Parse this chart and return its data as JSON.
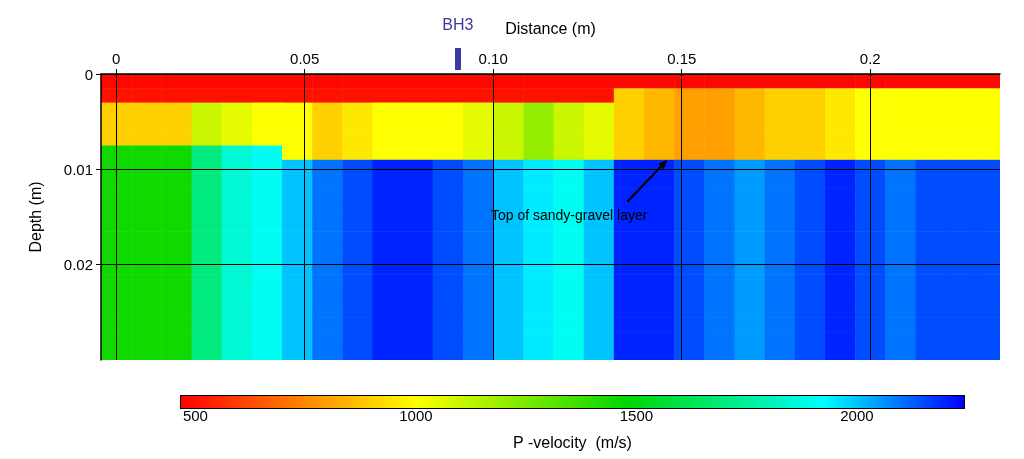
{
  "chart_data": {
    "type": "heatmap",
    "xlabel": "Distance (m)",
    "ylabel": "Depth (m)",
    "clabel": "P -velocity  (m/s)",
    "x": [
      0,
      0.008,
      0.016,
      0.024,
      0.032,
      0.04,
      0.048,
      0.056,
      0.064,
      0.072,
      0.08,
      0.088,
      0.096,
      0.104,
      0.112,
      0.12,
      0.128,
      0.136,
      0.144,
      0.152,
      0.16,
      0.168,
      0.176,
      0.184,
      0.192,
      0.2,
      0.208,
      0.216,
      0.224,
      0.232
    ],
    "y": [
      0.00075,
      0.00225,
      0.00375,
      0.00525,
      0.00675,
      0.00825,
      0.00975,
      0.01125,
      0.01275,
      0.01425,
      0.01575,
      0.01725,
      0.01875,
      0.02025,
      0.02175,
      0.02325,
      0.02475,
      0.02625,
      0.02775,
      0.02925
    ],
    "xlim": [
      -0.004,
      0.2344
    ],
    "ylim": [
      0.03,
      0
    ],
    "xticks": [
      0,
      0.05,
      {
        "value": 0.1,
        "label": "0.10"
      },
      0.15,
      0.2
    ],
    "yticks": [
      0,
      0.01,
      0.02
    ],
    "clim": [
      465,
      2245
    ],
    "cticks": [
      500,
      1000,
      1500,
      2000
    ],
    "grid": true,
    "annotations": [
      "BH3",
      "Top of sandy-gravel layer"
    ],
    "cells": [
      [
        480,
        480,
        480,
        480,
        480,
        480,
        480,
        480,
        480,
        480,
        480,
        480,
        480,
        480,
        480,
        480,
        480,
        480,
        480,
        480,
        480,
        480,
        480,
        480,
        480,
        480,
        480,
        480,
        480,
        480
      ],
      [
        500,
        500,
        500,
        500,
        500,
        500,
        500,
        500,
        500,
        500,
        500,
        500,
        500,
        500,
        500,
        500,
        500,
        900,
        850,
        800,
        800,
        850,
        900,
        900,
        950,
        1000,
        1000,
        1000,
        1000,
        1000
      ],
      [
        900,
        900,
        900,
        1100,
        1050,
        1000,
        1000,
        900,
        950,
        1000,
        1000,
        1000,
        1050,
        1100,
        1200,
        1100,
        1050,
        900,
        850,
        800,
        800,
        850,
        900,
        900,
        950,
        1000,
        1000,
        1000,
        1000,
        1000
      ],
      [
        900,
        900,
        900,
        1100,
        1050,
        1000,
        1000,
        900,
        950,
        1000,
        1000,
        1000,
        1050,
        1100,
        1200,
        1100,
        1050,
        900,
        850,
        800,
        800,
        850,
        900,
        900,
        950,
        1000,
        1000,
        1000,
        1000,
        1000
      ],
      [
        900,
        900,
        900,
        1100,
        1050,
        1000,
        1000,
        900,
        950,
        1000,
        1000,
        1000,
        1050,
        1100,
        1200,
        1100,
        1050,
        900,
        850,
        800,
        800,
        850,
        900,
        900,
        950,
        1000,
        1000,
        1000,
        1000,
        1000
      ],
      [
        1450,
        1450,
        1450,
        1700,
        1850,
        1900,
        1000,
        900,
        950,
        1000,
        1000,
        1000,
        1050,
        1100,
        1200,
        1100,
        1050,
        900,
        850,
        800,
        800,
        850,
        900,
        900,
        950,
        1000,
        1000,
        1000,
        1000,
        1000
      ],
      [
        1450,
        1450,
        1450,
        1700,
        1850,
        1900,
        2000,
        2100,
        2150,
        2200,
        2200,
        2150,
        2100,
        2000,
        1950,
        1900,
        2000,
        2200,
        2200,
        2150,
        2100,
        2050,
        2100,
        2150,
        2200,
        2150,
        2100,
        2150,
        2150,
        2150
      ],
      [
        1450,
        1450,
        1450,
        1700,
        1850,
        1900,
        2000,
        2100,
        2150,
        2200,
        2200,
        2150,
        2100,
        2000,
        1950,
        1900,
        2000,
        2200,
        2200,
        2150,
        2100,
        2050,
        2100,
        2150,
        2200,
        2150,
        2100,
        2150,
        2150,
        2150
      ],
      [
        1450,
        1450,
        1450,
        1700,
        1850,
        1900,
        2000,
        2100,
        2150,
        2200,
        2200,
        2150,
        2100,
        2000,
        1950,
        1900,
        2000,
        2200,
        2200,
        2150,
        2100,
        2050,
        2100,
        2150,
        2200,
        2150,
        2100,
        2150,
        2150,
        2150
      ],
      [
        1450,
        1450,
        1450,
        1700,
        1850,
        1900,
        2000,
        2100,
        2150,
        2200,
        2200,
        2150,
        2100,
        2000,
        1950,
        1900,
        2000,
        2200,
        2200,
        2150,
        2100,
        2050,
        2100,
        2150,
        2200,
        2150,
        2100,
        2150,
        2150,
        2150
      ],
      [
        1450,
        1450,
        1450,
        1700,
        1850,
        1900,
        2000,
        2100,
        2150,
        2200,
        2200,
        2150,
        2100,
        2000,
        1950,
        1900,
        2000,
        2200,
        2200,
        2150,
        2100,
        2050,
        2100,
        2150,
        2200,
        2150,
        2100,
        2150,
        2150,
        2150
      ],
      [
        1450,
        1450,
        1450,
        1700,
        1850,
        1900,
        2000,
        2100,
        2150,
        2200,
        2200,
        2150,
        2100,
        2000,
        1950,
        1900,
        2000,
        2200,
        2200,
        2150,
        2100,
        2050,
        2100,
        2150,
        2200,
        2150,
        2100,
        2150,
        2150,
        2150
      ],
      [
        1450,
        1450,
        1450,
        1700,
        1850,
        1900,
        2000,
        2100,
        2150,
        2200,
        2200,
        2150,
        2100,
        2000,
        1950,
        1900,
        2000,
        2200,
        2200,
        2150,
        2100,
        2050,
        2100,
        2150,
        2200,
        2150,
        2100,
        2150,
        2150,
        2150
      ],
      [
        1450,
        1450,
        1450,
        1700,
        1850,
        1900,
        2000,
        2100,
        2150,
        2200,
        2200,
        2150,
        2100,
        2000,
        1950,
        1900,
        2000,
        2200,
        2200,
        2150,
        2100,
        2050,
        2100,
        2150,
        2200,
        2150,
        2100,
        2150,
        2150,
        2150
      ],
      [
        1450,
        1450,
        1450,
        1700,
        1850,
        1900,
        2000,
        2100,
        2150,
        2200,
        2200,
        2150,
        2100,
        2000,
        1950,
        1900,
        2000,
        2200,
        2200,
        2150,
        2100,
        2050,
        2100,
        2150,
        2200,
        2150,
        2100,
        2150,
        2150,
        2150
      ],
      [
        1450,
        1450,
        1450,
        1700,
        1850,
        1900,
        2000,
        2100,
        2150,
        2200,
        2200,
        2150,
        2100,
        2000,
        1950,
        1900,
        2000,
        2200,
        2200,
        2150,
        2100,
        2050,
        2100,
        2150,
        2200,
        2150,
        2100,
        2150,
        2150,
        2150
      ],
      [
        1450,
        1450,
        1450,
        1700,
        1850,
        1900,
        2000,
        2100,
        2150,
        2200,
        2200,
        2150,
        2100,
        2000,
        1950,
        1900,
        2000,
        2200,
        2200,
        2150,
        2100,
        2050,
        2100,
        2150,
        2200,
        2150,
        2100,
        2150,
        2150,
        2150
      ],
      [
        1450,
        1450,
        1450,
        1700,
        1850,
        1900,
        2000,
        2100,
        2150,
        2200,
        2200,
        2150,
        2100,
        2000,
        1950,
        1900,
        2000,
        2200,
        2200,
        2150,
        2100,
        2050,
        2100,
        2150,
        2200,
        2150,
        2100,
        2150,
        2150,
        2150
      ],
      [
        1450,
        1450,
        1450,
        1700,
        1850,
        1900,
        2000,
        2100,
        2150,
        2200,
        2200,
        2150,
        2100,
        2000,
        1950,
        1900,
        2000,
        2200,
        2200,
        2150,
        2100,
        2050,
        2100,
        2150,
        2200,
        2150,
        2100,
        2150,
        2150,
        2150
      ],
      [
        1450,
        1450,
        1450,
        1700,
        1850,
        1900,
        2000,
        2100,
        2150,
        2200,
        2200,
        2150,
        2100,
        2000,
        1950,
        1900,
        2000,
        2200,
        2200,
        2150,
        2100,
        2050,
        2100,
        2150,
        2200,
        2150,
        2100,
        2150,
        2150,
        2150
      ]
    ]
  }
}
